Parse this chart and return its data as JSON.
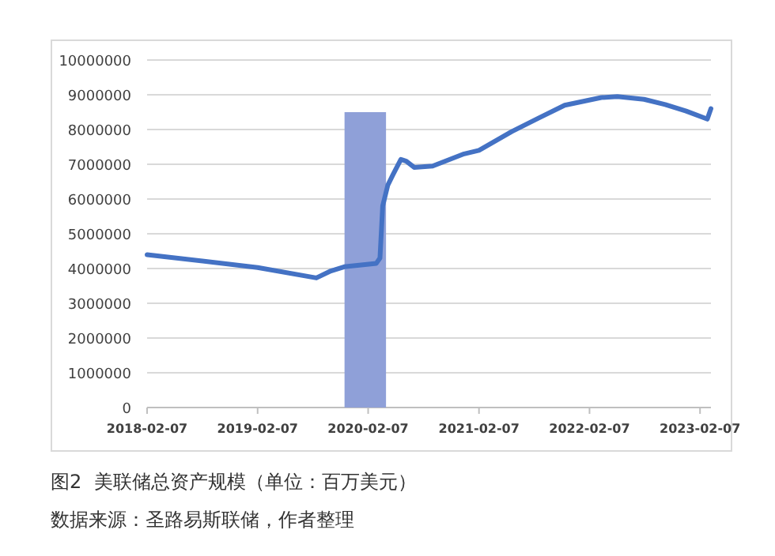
{
  "chart_data": {
    "type": "line",
    "title": "图2  美联储总资产规模（单位：百万美元）",
    "annotations": [
      "数据来源：圣路易斯联储，作者整理"
    ],
    "xlim": [
      "2018-02-07",
      "2023-03-15"
    ],
    "xticks": [
      "2018-02-07",
      "2019-02-07",
      "2020-02-07",
      "2021-02-07",
      "2022-02-07",
      "2023-02-07"
    ],
    "ylim": [
      0,
      10000000
    ],
    "yticks": [
      0,
      1000000,
      2000000,
      3000000,
      4000000,
      5000000,
      6000000,
      7000000,
      8000000,
      9000000,
      10000000
    ],
    "grid": "y",
    "series": [
      {
        "type": "area",
        "color": "#8fa0d8",
        "x": [
          "2019-11-21",
          "2020-04-06"
        ],
        "values": [
          8500000,
          8500000
        ]
      },
      {
        "type": "line",
        "color": "#4472c4",
        "x": [
          "2018-02-07",
          "2019-02-07",
          "2019-08-20",
          "2019-10-07",
          "2019-11-20",
          "2020-03-05",
          "2020-03-17",
          "2020-03-26",
          "2020-04-12",
          "2020-04-29",
          "2020-05-25",
          "2020-06-12",
          "2020-07-08",
          "2020-09-07",
          "2020-12-20",
          "2021-02-07",
          "2021-05-26",
          "2021-08-21",
          "2021-11-17",
          "2022-03-18",
          "2022-05-10",
          "2022-08-06",
          "2022-10-15",
          "2022-12-23",
          "2023-03-03",
          "2023-03-15"
        ],
        "values": [
          4400000,
          4030000,
          3730000,
          3930000,
          4050000,
          4150000,
          4300000,
          5800000,
          6400000,
          6700000,
          7140000,
          7090000,
          6910000,
          6950000,
          7300000,
          7400000,
          7940000,
          8320000,
          8700000,
          8920000,
          8950000,
          8870000,
          8720000,
          8530000,
          8300000,
          8600000
        ]
      }
    ]
  }
}
